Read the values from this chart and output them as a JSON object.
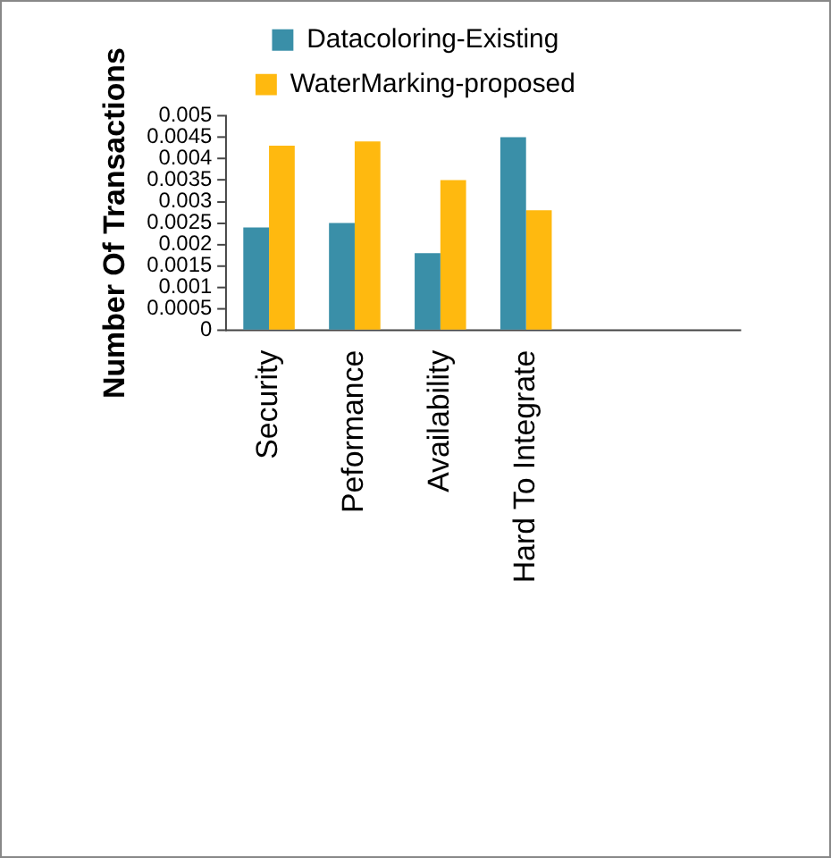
{
  "chart_data": {
    "type": "bar",
    "ylabel": "Number Of Transactions",
    "categories": [
      "Security",
      "Peformance",
      "Availability",
      "Hard To Integrate",
      null,
      null
    ],
    "series": [
      {
        "name": "Datacoloring-Existing",
        "color": "#3a8fa8",
        "values": [
          0.0024,
          0.0025,
          0.0018,
          0.0045,
          null,
          null
        ]
      },
      {
        "name": "WaterMarking-proposed",
        "color": "#ffb90f",
        "values": [
          0.0043,
          0.0044,
          0.0035,
          0.0028,
          null,
          null
        ]
      }
    ],
    "ylim": [
      0,
      0.005
    ],
    "yticks": [
      0,
      0.0005,
      0.001,
      0.0015,
      0.002,
      0.0025,
      0.003,
      0.0035,
      0.004,
      0.0045,
      0.005
    ],
    "grid": false,
    "legend": "top"
  }
}
